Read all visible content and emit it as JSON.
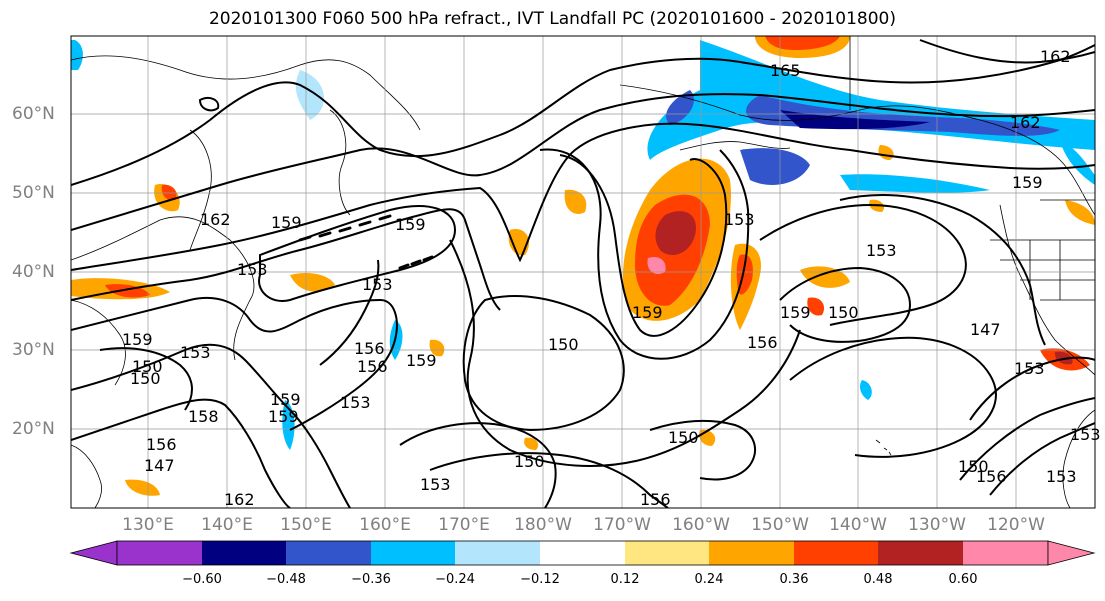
{
  "title": "2020101300 F060 500 hPa refract., IVT Landfall PC (2020101600 - 2020101800)",
  "lat_labels": [
    "60°N",
    "50°N",
    "40°N",
    "30°N",
    "20°N"
  ],
  "lon_labels": [
    "130°E",
    "140°E",
    "150°E",
    "160°E",
    "170°E",
    "180°W",
    "170°W",
    "160°W",
    "150°W",
    "140°W",
    "130°W",
    "120°W"
  ],
  "colorbar": {
    "ticks": [
      "−0.60",
      "−0.48",
      "−0.36",
      "−0.24",
      "−0.12",
      "0.12",
      "0.24",
      "0.36",
      "0.48",
      "0.60"
    ],
    "colors": [
      "#9933cc",
      "#000080",
      "#3355cc",
      "#00bfff",
      "#b3e5fc",
      "#ffffff",
      "#ffe680",
      "#ffa500",
      "#ff4000",
      "#b22222",
      "#ff88aa"
    ]
  },
  "contour_labels": [
    "165",
    "162",
    "162",
    "159",
    "153",
    "159",
    "153",
    "159",
    "159",
    "162",
    "153",
    "159",
    "153",
    "150",
    "147",
    "159",
    "156",
    "153",
    "159",
    "150",
    "153",
    "156",
    "150",
    "156",
    "159",
    "153",
    "158",
    "150",
    "147",
    "153",
    "153",
    "150",
    "156",
    "153",
    "162",
    "150",
    "156",
    "156",
    "159",
    "150"
  ]
}
